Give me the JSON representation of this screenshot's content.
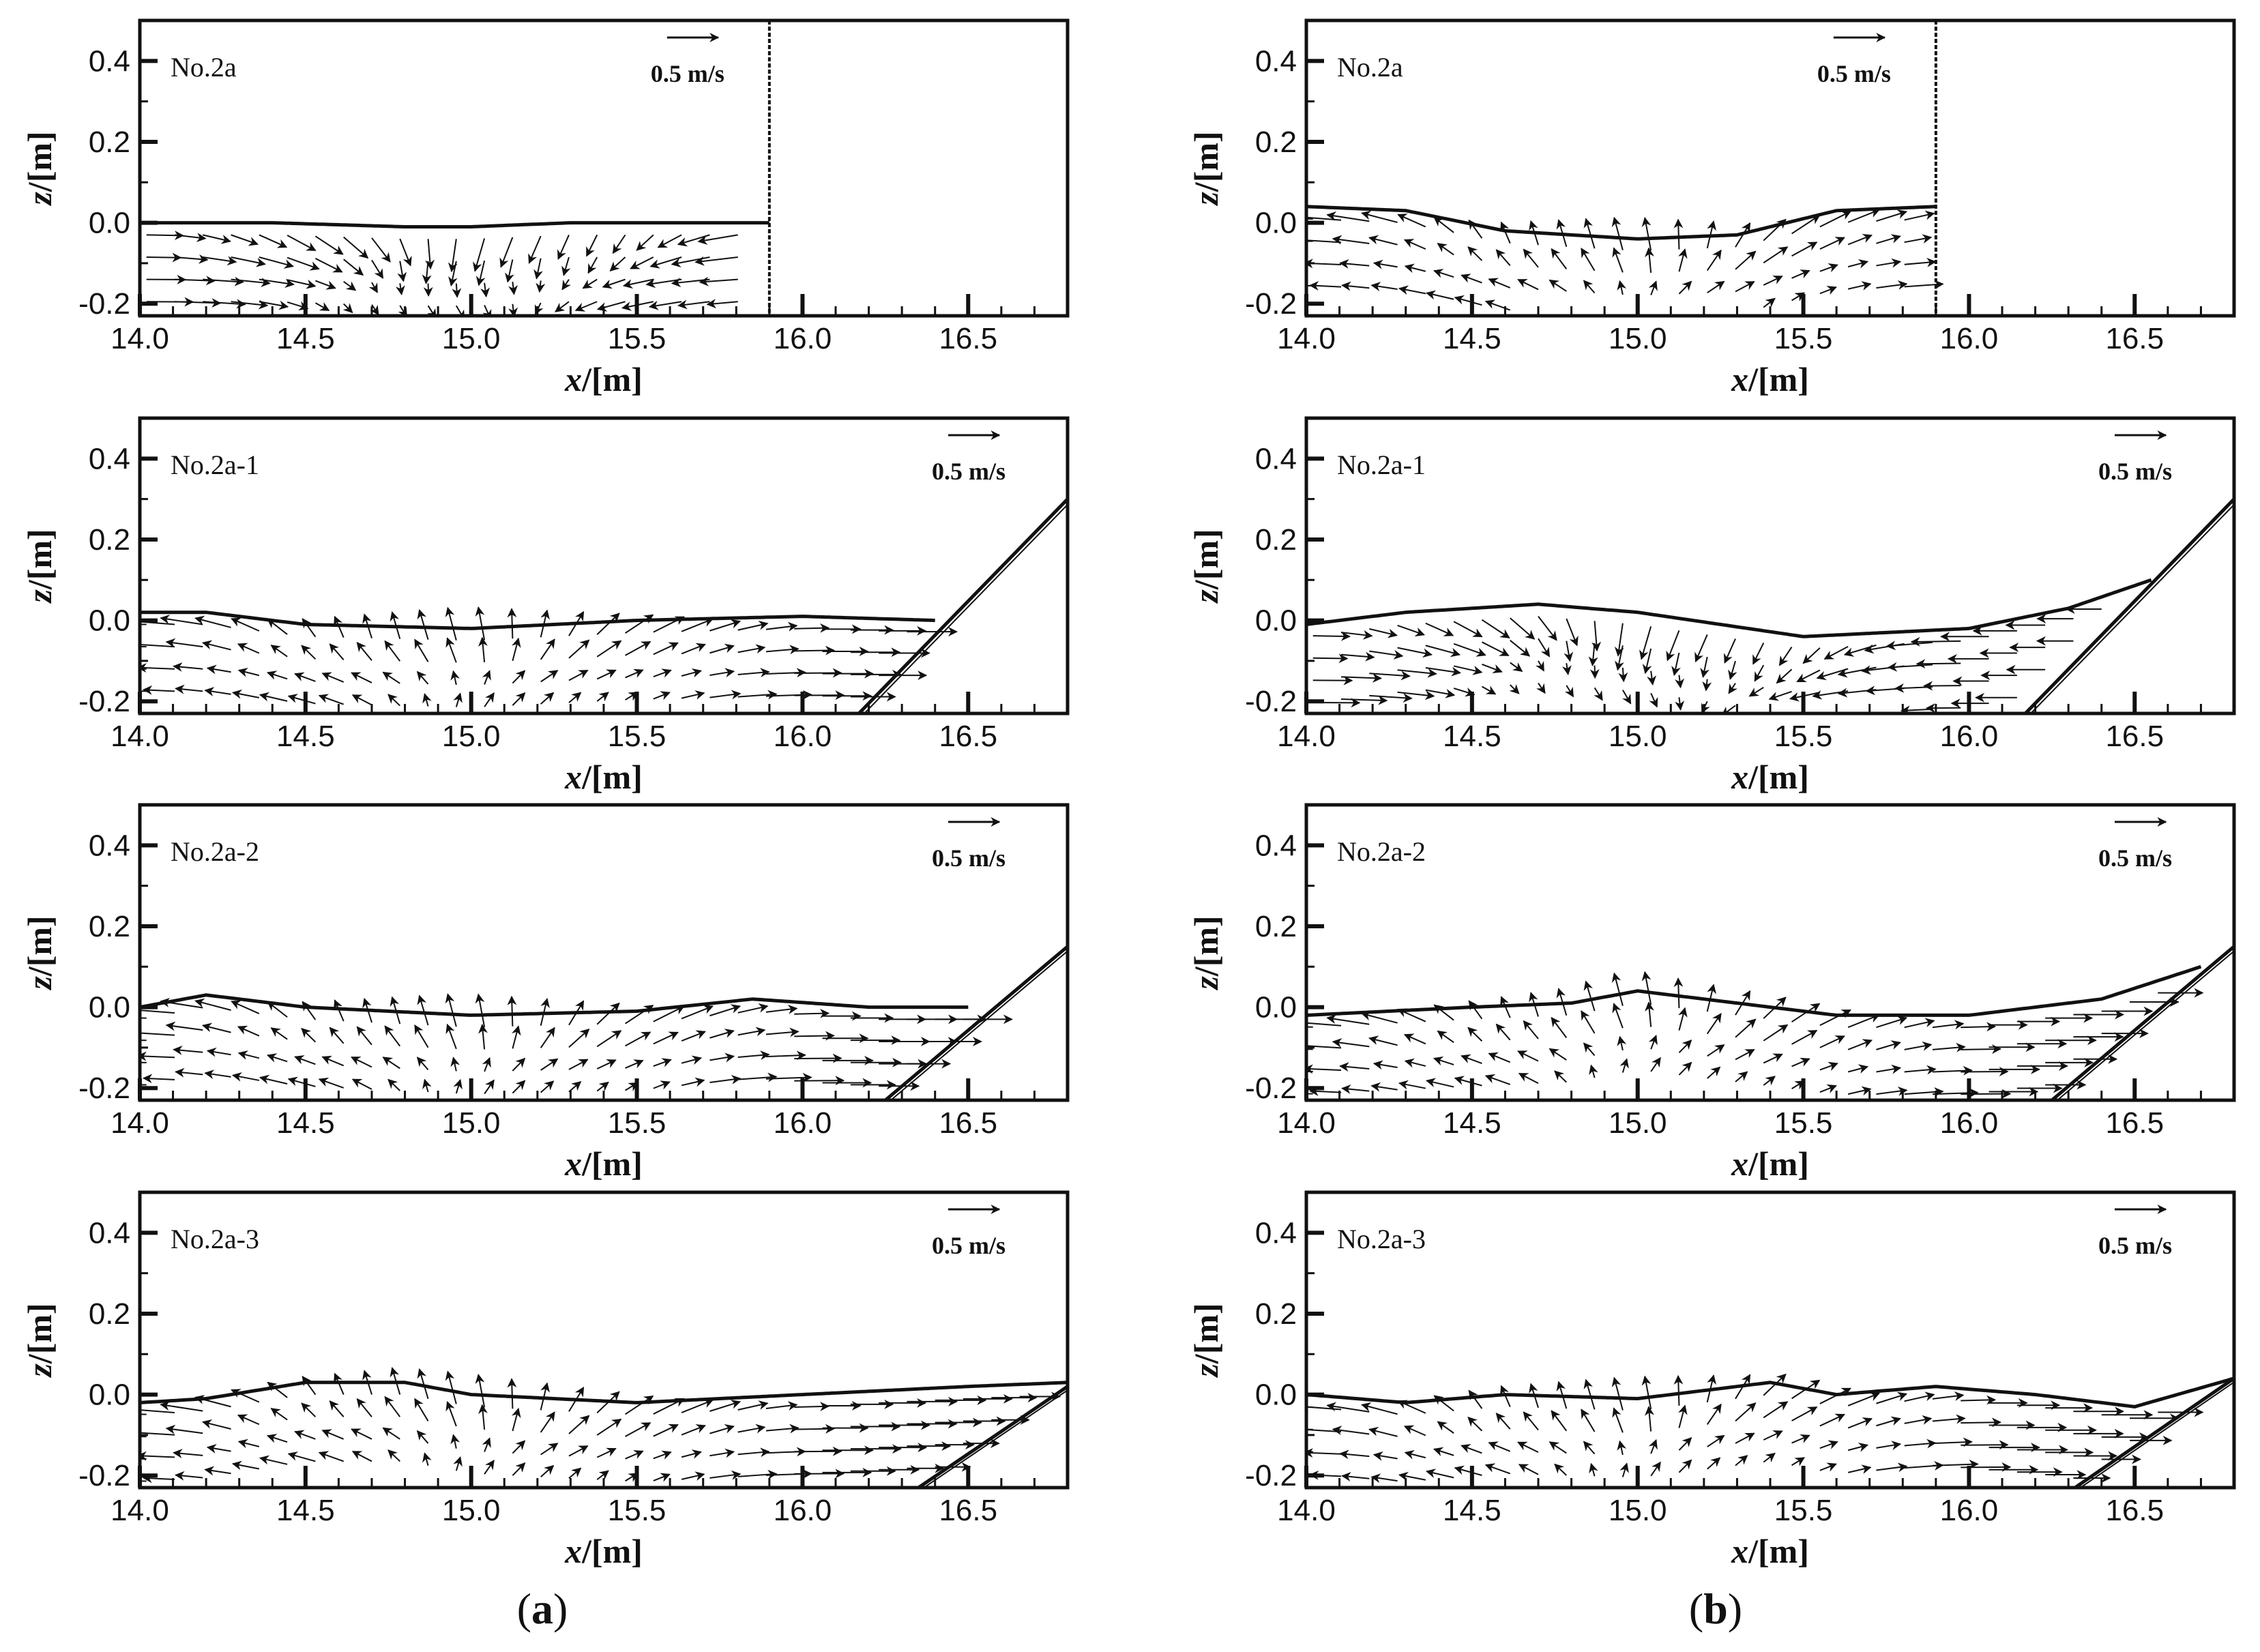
{
  "figure": {
    "column_labels": [
      {
        "open": "(",
        "letter": "a",
        "close": ")"
      },
      {
        "open": "(",
        "letter": "b",
        "close": ")"
      }
    ],
    "colors": {
      "line": "#111111",
      "background": "#ffffff"
    }
  },
  "chart_data": [
    {
      "type": "vector-field",
      "column": "a",
      "panel_label": "No.2a",
      "reference_vector": {
        "magnitude": 0.5,
        "label": "0.5 m/s"
      },
      "xlabel_var": "x",
      "xlabel_unit": "/[m]",
      "ylabel_var": "z",
      "ylabel_unit": "/[m]",
      "xlim": [
        14.0,
        16.8
      ],
      "ylim": [
        -0.23,
        0.5
      ],
      "x_ticks": [
        14.0,
        14.5,
        15.0,
        15.5,
        16.0,
        16.5
      ],
      "x_tick_labels": [
        "14.0",
        "14.5",
        "15.0",
        "15.5",
        "16.0",
        "16.5"
      ],
      "y_ticks": [
        -0.2,
        0.0,
        0.2,
        0.4
      ],
      "y_tick_labels": [
        "-0.2",
        "0.0",
        "0.2",
        "0.4"
      ],
      "boundary": {
        "kind": "vertical-wall",
        "x": 15.9
      },
      "free_surface": [
        [
          14.0,
          0.0
        ],
        [
          14.4,
          0.0
        ],
        [
          14.8,
          -0.01
        ],
        [
          15.0,
          -0.01
        ],
        [
          15.3,
          0.0
        ],
        [
          15.6,
          0.0
        ],
        [
          15.9,
          0.0
        ]
      ],
      "velocity_pattern": "converge"
    },
    {
      "type": "vector-field",
      "column": "a",
      "panel_label": "No.2a-1",
      "reference_vector": {
        "magnitude": 0.5,
        "label": "0.5 m/s"
      },
      "xlabel_var": "x",
      "xlabel_unit": "/[m]",
      "ylabel_var": "z",
      "ylabel_unit": "/[m]",
      "xlim": [
        14.0,
        16.8
      ],
      "ylim": [
        -0.23,
        0.5
      ],
      "x_ticks": [
        14.0,
        14.5,
        15.0,
        15.5,
        16.0,
        16.5
      ],
      "x_tick_labels": [
        "14.0",
        "14.5",
        "15.0",
        "15.5",
        "16.0",
        "16.5"
      ],
      "y_ticks": [
        -0.2,
        0.0,
        0.2,
        0.4
      ],
      "y_tick_labels": [
        "-0.2",
        "0.0",
        "0.2",
        "0.4"
      ],
      "boundary": {
        "kind": "slope",
        "from": [
          16.17,
          -0.23
        ],
        "to": [
          16.8,
          0.3
        ]
      },
      "free_surface": [
        [
          14.0,
          0.02
        ],
        [
          14.2,
          0.02
        ],
        [
          14.5,
          -0.01
        ],
        [
          15.0,
          -0.02
        ],
        [
          15.5,
          0.0
        ],
        [
          16.0,
          0.01
        ],
        [
          16.4,
          0.0
        ]
      ],
      "velocity_pattern": "diverge"
    },
    {
      "type": "vector-field",
      "column": "a",
      "panel_label": "No.2a-2",
      "reference_vector": {
        "magnitude": 0.5,
        "label": "0.5 m/s"
      },
      "xlabel_var": "x",
      "xlabel_unit": "/[m]",
      "ylabel_var": "z",
      "ylabel_unit": "/[m]",
      "xlim": [
        14.0,
        16.8
      ],
      "ylim": [
        -0.23,
        0.5
      ],
      "x_ticks": [
        14.0,
        14.5,
        15.0,
        15.5,
        16.0,
        16.5
      ],
      "x_tick_labels": [
        "14.0",
        "14.5",
        "15.0",
        "15.5",
        "16.0",
        "16.5"
      ],
      "y_ticks": [
        -0.2,
        0.0,
        0.2,
        0.4
      ],
      "y_tick_labels": [
        "-0.2",
        "0.0",
        "0.2",
        "0.4"
      ],
      "boundary": {
        "kind": "slope",
        "from": [
          16.25,
          -0.23
        ],
        "to": [
          16.8,
          0.15
        ]
      },
      "free_surface": [
        [
          14.0,
          0.0
        ],
        [
          14.2,
          0.03
        ],
        [
          14.5,
          0.0
        ],
        [
          15.0,
          -0.02
        ],
        [
          15.5,
          -0.01
        ],
        [
          15.85,
          0.02
        ],
        [
          16.2,
          0.0
        ],
        [
          16.5,
          0.0
        ]
      ],
      "velocity_pattern": "diverge"
    },
    {
      "type": "vector-field",
      "column": "a",
      "panel_label": "No.2a-3",
      "reference_vector": {
        "magnitude": 0.5,
        "label": "0.5 m/s"
      },
      "xlabel_var": "x",
      "xlabel_unit": "/[m]",
      "ylabel_var": "z",
      "ylabel_unit": "/[m]",
      "xlim": [
        14.0,
        16.8
      ],
      "ylim": [
        -0.23,
        0.5
      ],
      "x_ticks": [
        14.0,
        14.5,
        15.0,
        15.5,
        16.0,
        16.5
      ],
      "x_tick_labels": [
        "14.0",
        "14.5",
        "15.0",
        "15.5",
        "16.0",
        "16.5"
      ],
      "y_ticks": [
        -0.2,
        0.0,
        0.2,
        0.4
      ],
      "y_tick_labels": [
        "-0.2",
        "0.0",
        "0.2",
        "0.4"
      ],
      "boundary": {
        "kind": "slope",
        "from": [
          16.35,
          -0.23
        ],
        "to": [
          16.8,
          0.02
        ]
      },
      "free_surface": [
        [
          14.0,
          -0.02
        ],
        [
          14.2,
          -0.01
        ],
        [
          14.5,
          0.03
        ],
        [
          14.8,
          0.03
        ],
        [
          15.0,
          0.0
        ],
        [
          15.5,
          -0.02
        ],
        [
          16.0,
          0.0
        ],
        [
          16.5,
          0.02
        ],
        [
          16.8,
          0.03
        ]
      ],
      "velocity_pattern": "diverge"
    },
    {
      "type": "vector-field",
      "column": "b",
      "panel_label": "No.2a",
      "reference_vector": {
        "magnitude": 0.5,
        "label": "0.5 m/s"
      },
      "xlabel_var": "x",
      "xlabel_unit": "/[m]",
      "ylabel_var": "z",
      "ylabel_unit": "/[m]",
      "xlim": [
        14.0,
        16.8
      ],
      "ylim": [
        -0.23,
        0.5
      ],
      "x_ticks": [
        14.0,
        14.5,
        15.0,
        15.5,
        16.0,
        16.5
      ],
      "x_tick_labels": [
        "14.0",
        "14.5",
        "15.0",
        "15.5",
        "16.0",
        "16.5"
      ],
      "y_ticks": [
        -0.2,
        0.0,
        0.2,
        0.4
      ],
      "y_tick_labels": [
        "-0.2",
        "0.0",
        "0.2",
        "0.4"
      ],
      "boundary": {
        "kind": "vertical-wall",
        "x": 15.9
      },
      "free_surface": [
        [
          14.0,
          0.04
        ],
        [
          14.3,
          0.03
        ],
        [
          14.6,
          -0.02
        ],
        [
          15.0,
          -0.04
        ],
        [
          15.3,
          -0.03
        ],
        [
          15.6,
          0.03
        ],
        [
          15.9,
          0.04
        ]
      ],
      "velocity_pattern": "diverge"
    },
    {
      "type": "vector-field",
      "column": "b",
      "panel_label": "No.2a-1",
      "reference_vector": {
        "magnitude": 0.5,
        "label": "0.5 m/s"
      },
      "xlabel_var": "x",
      "xlabel_unit": "/[m]",
      "ylabel_var": "z",
      "ylabel_unit": "/[m]",
      "xlim": [
        14.0,
        16.8
      ],
      "ylim": [
        -0.23,
        0.5
      ],
      "x_ticks": [
        14.0,
        14.5,
        15.0,
        15.5,
        16.0,
        16.5
      ],
      "x_tick_labels": [
        "14.0",
        "14.5",
        "15.0",
        "15.5",
        "16.0",
        "16.5"
      ],
      "y_ticks": [
        -0.2,
        0.0,
        0.2,
        0.4
      ],
      "y_tick_labels": [
        "-0.2",
        "0.0",
        "0.2",
        "0.4"
      ],
      "boundary": {
        "kind": "slope",
        "from": [
          16.17,
          -0.23
        ],
        "to": [
          16.8,
          0.3
        ]
      },
      "free_surface": [
        [
          14.0,
          -0.01
        ],
        [
          14.3,
          0.02
        ],
        [
          14.7,
          0.04
        ],
        [
          15.0,
          0.02
        ],
        [
          15.5,
          -0.04
        ],
        [
          16.0,
          -0.02
        ],
        [
          16.3,
          0.03
        ],
        [
          16.55,
          0.1
        ]
      ],
      "velocity_pattern": "converge"
    },
    {
      "type": "vector-field",
      "column": "b",
      "panel_label": "No.2a-2",
      "reference_vector": {
        "magnitude": 0.5,
        "label": "0.5 m/s"
      },
      "xlabel_var": "x",
      "xlabel_unit": "/[m]",
      "ylabel_var": "z",
      "ylabel_unit": "/[m]",
      "xlim": [
        14.0,
        16.8
      ],
      "ylim": [
        -0.23,
        0.5
      ],
      "x_ticks": [
        14.0,
        14.5,
        15.0,
        15.5,
        16.0,
        16.5
      ],
      "x_tick_labels": [
        "14.0",
        "14.5",
        "15.0",
        "15.5",
        "16.0",
        "16.5"
      ],
      "y_ticks": [
        -0.2,
        0.0,
        0.2,
        0.4
      ],
      "y_tick_labels": [
        "-0.2",
        "0.0",
        "0.2",
        "0.4"
      ],
      "boundary": {
        "kind": "slope",
        "from": [
          16.25,
          -0.23
        ],
        "to": [
          16.8,
          0.15
        ]
      },
      "free_surface": [
        [
          14.0,
          -0.02
        ],
        [
          14.5,
          0.0
        ],
        [
          14.8,
          0.01
        ],
        [
          15.0,
          0.04
        ],
        [
          15.3,
          0.01
        ],
        [
          15.6,
          -0.02
        ],
        [
          16.0,
          -0.02
        ],
        [
          16.4,
          0.02
        ],
        [
          16.7,
          0.1
        ]
      ],
      "velocity_pattern": "diverge"
    },
    {
      "type": "vector-field",
      "column": "b",
      "panel_label": "No.2a-3",
      "reference_vector": {
        "magnitude": 0.5,
        "label": "0.5 m/s"
      },
      "xlabel_var": "x",
      "xlabel_unit": "/[m]",
      "ylabel_var": "z",
      "ylabel_unit": "/[m]",
      "xlim": [
        14.0,
        16.8
      ],
      "ylim": [
        -0.23,
        0.5
      ],
      "x_ticks": [
        14.0,
        14.5,
        15.0,
        15.5,
        16.0,
        16.5
      ],
      "x_tick_labels": [
        "14.0",
        "14.5",
        "15.0",
        "15.5",
        "16.0",
        "16.5"
      ],
      "y_ticks": [
        -0.2,
        0.0,
        0.2,
        0.4
      ],
      "y_tick_labels": [
        "-0.2",
        "0.0",
        "0.2",
        "0.4"
      ],
      "boundary": {
        "kind": "slope",
        "from": [
          16.32,
          -0.23
        ],
        "to": [
          16.8,
          0.04
        ]
      },
      "free_surface": [
        [
          14.0,
          0.0
        ],
        [
          14.3,
          -0.02
        ],
        [
          14.6,
          0.0
        ],
        [
          15.0,
          -0.01
        ],
        [
          15.4,
          0.03
        ],
        [
          15.6,
          0.0
        ],
        [
          15.9,
          0.02
        ],
        [
          16.2,
          0.0
        ],
        [
          16.5,
          -0.03
        ],
        [
          16.8,
          0.04
        ]
      ],
      "velocity_pattern": "diverge"
    }
  ]
}
